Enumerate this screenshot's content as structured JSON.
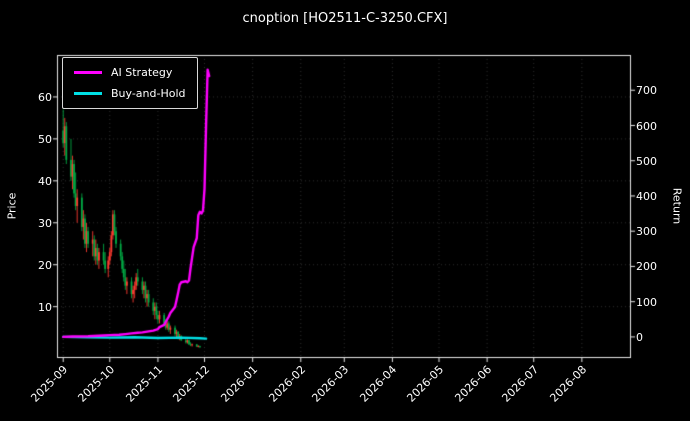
{
  "title": "cnoption [HO2511-C-3250.CFX]",
  "legend": {
    "items": [
      {
        "label": "AI Strategy",
        "color": "#ff00ff"
      },
      {
        "label": "Buy-and-Hold",
        "color": "#00e0e6"
      }
    ]
  },
  "axes": {
    "left_label": "Price",
    "right_label": "Return",
    "price_ticks": [
      "10",
      "20",
      "30",
      "40",
      "50",
      "60"
    ],
    "return_ticks": [
      "0",
      "100",
      "200",
      "300",
      "400",
      "500",
      "600",
      "700"
    ],
    "x_ticks": [
      "2025-09",
      "2025-10",
      "2025-11",
      "2025-12",
      "2026-01",
      "2026-02",
      "2026-03",
      "2026-04",
      "2026-05",
      "2026-06",
      "2026-07",
      "2026-08"
    ]
  },
  "chart_data": {
    "type": "mixed",
    "subtype": [
      "candlestick",
      "line"
    ],
    "title": "cnoption [HO2511-C-3250.CFX]",
    "background": "#000000",
    "grid": "dotted",
    "legend_position": "upper-left",
    "x_axis": {
      "label": "",
      "tick_labels": [
        "2025-09",
        "2025-10",
        "2025-11",
        "2025-12",
        "2026-01",
        "2026-02",
        "2026-03",
        "2026-04",
        "2026-05",
        "2026-06",
        "2026-07",
        "2026-08"
      ],
      "range_days": [
        0,
        369
      ],
      "tick_days": [
        4,
        34,
        65,
        95,
        126,
        157,
        185,
        216,
        246,
        277,
        307,
        338
      ]
    },
    "price_axis": {
      "label": "Price",
      "ticks": [
        10,
        20,
        30,
        40,
        50,
        60
      ],
      "range": [
        -2,
        70
      ]
    },
    "return_axis": {
      "label": "Return",
      "ticks": [
        0,
        100,
        200,
        300,
        400,
        500,
        600,
        700
      ],
      "range": [
        -57,
        800
      ]
    },
    "candles": {
      "axis": "price",
      "up_color": "#ff3b30",
      "down_color": "#00a843",
      "data": [
        [
          4,
          52,
          57,
          48,
          49
        ],
        [
          5,
          49,
          55,
          46,
          53
        ],
        [
          6,
          53,
          54,
          44,
          45
        ],
        [
          9,
          45,
          50,
          40,
          41
        ],
        [
          10,
          41,
          46,
          38,
          44
        ],
        [
          11,
          44,
          45,
          36,
          37
        ],
        [
          12,
          37,
          42,
          33,
          34
        ],
        [
          13,
          34,
          38,
          30,
          36
        ],
        [
          16,
          36,
          37,
          28,
          29
        ],
        [
          17,
          29,
          33,
          26,
          31
        ],
        [
          18,
          31,
          32,
          24,
          25
        ],
        [
          19,
          25,
          30,
          23,
          28
        ],
        [
          20,
          28,
          29,
          24,
          25
        ],
        [
          23,
          25,
          28,
          22,
          26
        ],
        [
          24,
          26,
          27,
          21,
          22
        ],
        [
          25,
          22,
          26,
          20,
          24
        ],
        [
          26,
          24,
          25,
          20,
          21
        ],
        [
          27,
          21,
          24,
          19,
          23
        ],
        [
          30,
          23,
          25,
          20,
          21
        ],
        [
          31,
          21,
          23,
          18,
          19
        ],
        [
          33,
          19,
          22,
          17,
          21
        ],
        [
          34,
          21,
          24,
          20,
          23
        ],
        [
          35,
          23,
          28,
          22,
          27
        ],
        [
          36,
          27,
          33,
          26,
          32
        ],
        [
          37,
          32,
          33,
          27,
          28
        ],
        [
          38,
          28,
          29,
          24,
          25
        ],
        [
          41,
          25,
          26,
          21,
          22
        ],
        [
          42,
          22,
          23,
          18,
          19
        ],
        [
          43,
          19,
          21,
          16,
          17
        ],
        [
          44,
          17,
          19,
          14,
          15
        ],
        [
          45,
          15,
          17,
          13,
          16
        ],
        [
          48,
          16,
          17,
          12,
          13
        ],
        [
          49,
          13,
          15,
          11,
          14
        ],
        [
          50,
          14,
          16,
          12,
          15
        ],
        [
          51,
          15,
          18,
          14,
          17
        ],
        [
          52,
          17,
          19,
          15,
          16
        ],
        [
          55,
          16,
          17,
          13,
          14
        ],
        [
          56,
          14,
          16,
          12,
          15
        ],
        [
          57,
          15,
          16,
          11,
          12
        ],
        [
          58,
          12,
          14,
          10,
          13
        ],
        [
          59,
          13,
          14,
          10,
          11
        ],
        [
          62,
          11,
          12,
          8,
          9
        ],
        [
          63,
          9,
          11,
          7,
          10
        ],
        [
          64,
          10,
          11,
          7,
          8
        ],
        [
          65,
          8,
          9,
          6,
          7
        ],
        [
          66,
          7,
          9,
          6,
          8
        ],
        [
          69,
          8,
          8.5,
          5.5,
          6
        ],
        [
          70,
          6,
          7,
          4.5,
          5
        ],
        [
          71,
          5,
          6.5,
          4.5,
          6
        ],
        [
          72,
          6,
          6.5,
          4,
          4.5
        ],
        [
          73,
          4.5,
          5.5,
          3.5,
          5
        ],
        [
          76,
          5,
          5.5,
          3,
          3.5
        ],
        [
          77,
          3.5,
          4.5,
          2.5,
          4
        ],
        [
          78,
          4,
          4.2,
          2.2,
          2.5
        ],
        [
          79,
          2.5,
          3.5,
          2,
          3
        ],
        [
          80,
          3,
          3.2,
          1.8,
          2
        ],
        [
          83,
          2,
          2.5,
          1.2,
          1.5
        ],
        [
          84,
          1.5,
          2.2,
          1.2,
          2
        ],
        [
          85,
          2,
          2.1,
          0.9,
          1
        ],
        [
          86,
          1,
          1.5,
          0.6,
          0.8
        ],
        [
          87,
          0.8,
          1.2,
          0.5,
          1
        ],
        [
          90,
          1,
          1.1,
          0.4,
          0.5
        ],
        [
          91,
          0.5,
          0.8,
          0.3,
          0.6
        ],
        [
          92,
          0.6,
          0.7,
          0.25,
          0.3
        ]
      ]
    },
    "series": [
      {
        "name": "AI Strategy",
        "axis": "return",
        "color": "#ff00ff",
        "width": 2.4,
        "points": [
          [
            4,
            0
          ],
          [
            10,
            1
          ],
          [
            20,
            2
          ],
          [
            30,
            4
          ],
          [
            34,
            5
          ],
          [
            40,
            6
          ],
          [
            44,
            8
          ],
          [
            48,
            10
          ],
          [
            52,
            12
          ],
          [
            55,
            13
          ],
          [
            58,
            15
          ],
          [
            62,
            18
          ],
          [
            65,
            22
          ],
          [
            66,
            28
          ],
          [
            69,
            34
          ],
          [
            70,
            42
          ],
          [
            71,
            50
          ],
          [
            72,
            58
          ],
          [
            73,
            68
          ],
          [
            76,
            85
          ],
          [
            77,
            105
          ],
          [
            78,
            125
          ],
          [
            79,
            148
          ],
          [
            80,
            155
          ],
          [
            83,
            158
          ],
          [
            84,
            155
          ],
          [
            85,
            160
          ],
          [
            86,
            195
          ],
          [
            87,
            225
          ],
          [
            88,
            255
          ],
          [
            90,
            280
          ],
          [
            91,
            345
          ],
          [
            92,
            355
          ],
          [
            93,
            350
          ],
          [
            94,
            358
          ],
          [
            95,
            420
          ],
          [
            96,
            600
          ],
          [
            97,
            758
          ],
          [
            98,
            740
          ]
        ]
      },
      {
        "name": "Buy-and-Hold",
        "axis": "return",
        "color": "#00e0e6",
        "width": 2.4,
        "points": [
          [
            4,
            0
          ],
          [
            20,
            -1
          ],
          [
            34,
            -2
          ],
          [
            50,
            -1
          ],
          [
            65,
            -3
          ],
          [
            80,
            -2
          ],
          [
            92,
            -4
          ],
          [
            96,
            -5
          ]
        ]
      }
    ]
  }
}
